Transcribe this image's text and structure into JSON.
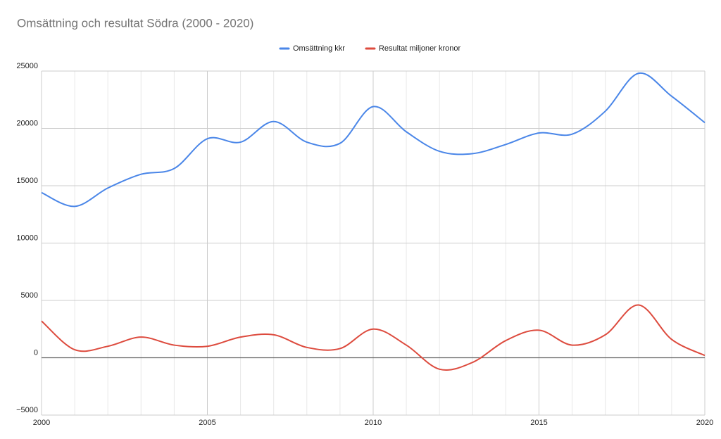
{
  "chart_data": {
    "type": "line",
    "title": "Omsättning och resultat Södra (2000 - 2020)",
    "x": [
      2000,
      2001,
      2002,
      2003,
      2004,
      2005,
      2006,
      2007,
      2008,
      2009,
      2010,
      2011,
      2012,
      2013,
      2014,
      2015,
      2016,
      2017,
      2018,
      2019,
      2020
    ],
    "series": [
      {
        "name": "Omsättning kkr",
        "color": "#4a86e8",
        "values": [
          14400,
          13200,
          14800,
          16000,
          16500,
          19100,
          18800,
          20600,
          18800,
          18700,
          21900,
          19700,
          18000,
          17800,
          18600,
          19600,
          19500,
          21500,
          24800,
          22800,
          20500
        ]
      },
      {
        "name": "Resultat miljoner kronor",
        "color": "#dd4b3e",
        "values": [
          3200,
          700,
          1000,
          1800,
          1100,
          1000,
          1800,
          2000,
          900,
          800,
          2500,
          1100,
          -1000,
          -400,
          1500,
          2400,
          1100,
          2000,
          4600,
          1600,
          200
        ]
      }
    ],
    "xlim": [
      2000,
      2020
    ],
    "xticks": [
      2000,
      2005,
      2010,
      2015,
      2020
    ],
    "ylim": [
      -5000,
      25000
    ],
    "yticks": [
      {
        "value": -5000,
        "label": "−5000"
      },
      0,
      5000,
      10000,
      15000,
      20000,
      25000
    ],
    "grid": true,
    "legend": "top"
  }
}
